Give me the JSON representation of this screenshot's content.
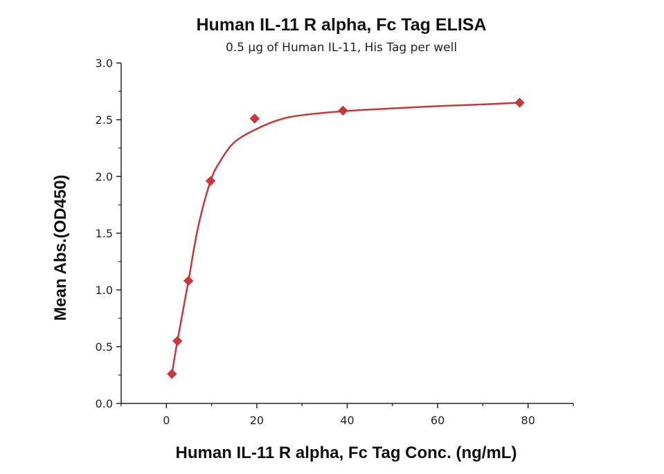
{
  "chart_data": {
    "type": "scatter",
    "title": "Human IL-11 R alpha, Fc Tag ELISA",
    "subtitle": "0.5 μg of Human IL-11, His Tag per well",
    "xlabel": "Human IL-11 R alpha, Fc Tag Conc. (ng/mL)",
    "ylabel": "Mean Abs.(OD450)",
    "xlim": [
      -10,
      90
    ],
    "ylim": [
      0,
      3.0
    ],
    "x_ticks": [
      0,
      20,
      40,
      60,
      80
    ],
    "x_tick_labels": [
      "0",
      "20",
      "40",
      "60",
      "80"
    ],
    "y_ticks": [
      0,
      0.5,
      1.0,
      1.5,
      2.0,
      2.5,
      3.0
    ],
    "y_tick_labels": [
      "0.0",
      "0.5",
      "1.0",
      "1.5",
      "2.0",
      "2.5",
      "3.0"
    ],
    "grid": false,
    "colors": {
      "series": "#c8373a",
      "axis": "#222222"
    },
    "series": [
      {
        "marker": "diamond",
        "x": [
          1.22,
          2.44,
          4.88,
          9.77,
          19.53,
          39.06,
          78.13
        ],
        "y": [
          0.26,
          0.55,
          1.08,
          1.96,
          2.51,
          2.58,
          2.65
        ]
      }
    ],
    "fit_curve": [
      [
        1.22,
        0.26
      ],
      [
        2.44,
        0.55
      ],
      [
        4.88,
        1.08
      ],
      [
        7,
        1.55
      ],
      [
        9.77,
        1.96
      ],
      [
        12,
        2.14
      ],
      [
        15,
        2.3
      ],
      [
        19.53,
        2.41
      ],
      [
        25,
        2.5
      ],
      [
        30,
        2.54
      ],
      [
        39.06,
        2.575
      ],
      [
        50,
        2.6
      ],
      [
        60,
        2.62
      ],
      [
        70,
        2.635
      ],
      [
        78.13,
        2.65
      ]
    ]
  }
}
